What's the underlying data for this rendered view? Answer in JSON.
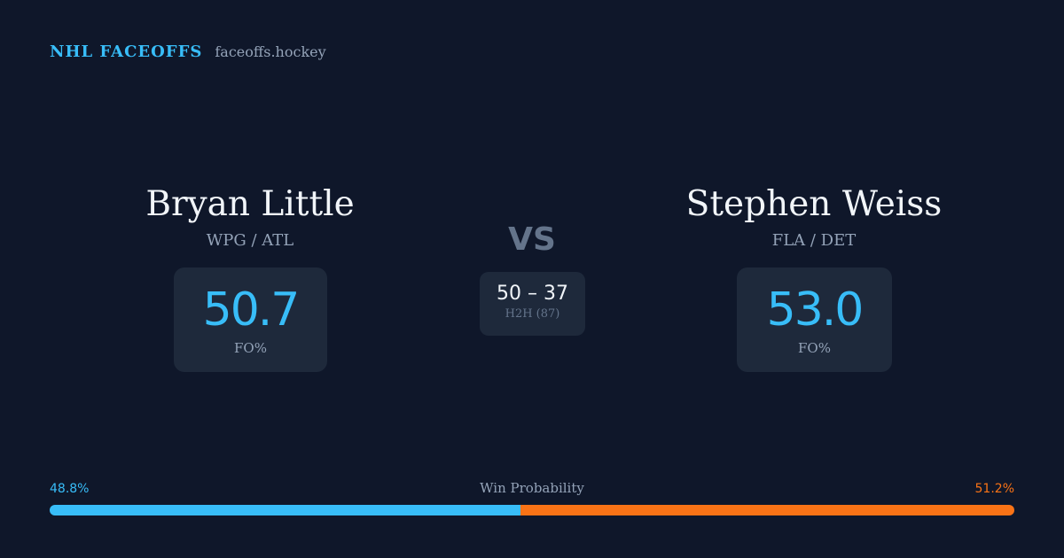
{
  "brand": {
    "title": "NHL FACEOFFS",
    "url": "faceoffs.hockey"
  },
  "players": {
    "left": {
      "name": "Bryan Little",
      "teams": "WPG / ATL",
      "fo_pct": "50.7",
      "fo_label": "FO%"
    },
    "right": {
      "name": "Stephen Weiss",
      "teams": "FLA / DET",
      "fo_pct": "53.0",
      "fo_label": "FO%"
    }
  },
  "versus": {
    "label": "VS",
    "h2h_score": "50 – 37",
    "h2h_label": "H2H (87)"
  },
  "win_probability": {
    "title": "Win Probability",
    "left_label": "48.8%",
    "right_label": "51.2%",
    "left_value": 0.488,
    "right_value": 0.512
  },
  "colors": {
    "background": "#0f172a",
    "card": "#1e293b",
    "accent_blue": "#38bdf8",
    "accent_orange": "#f97316"
  }
}
